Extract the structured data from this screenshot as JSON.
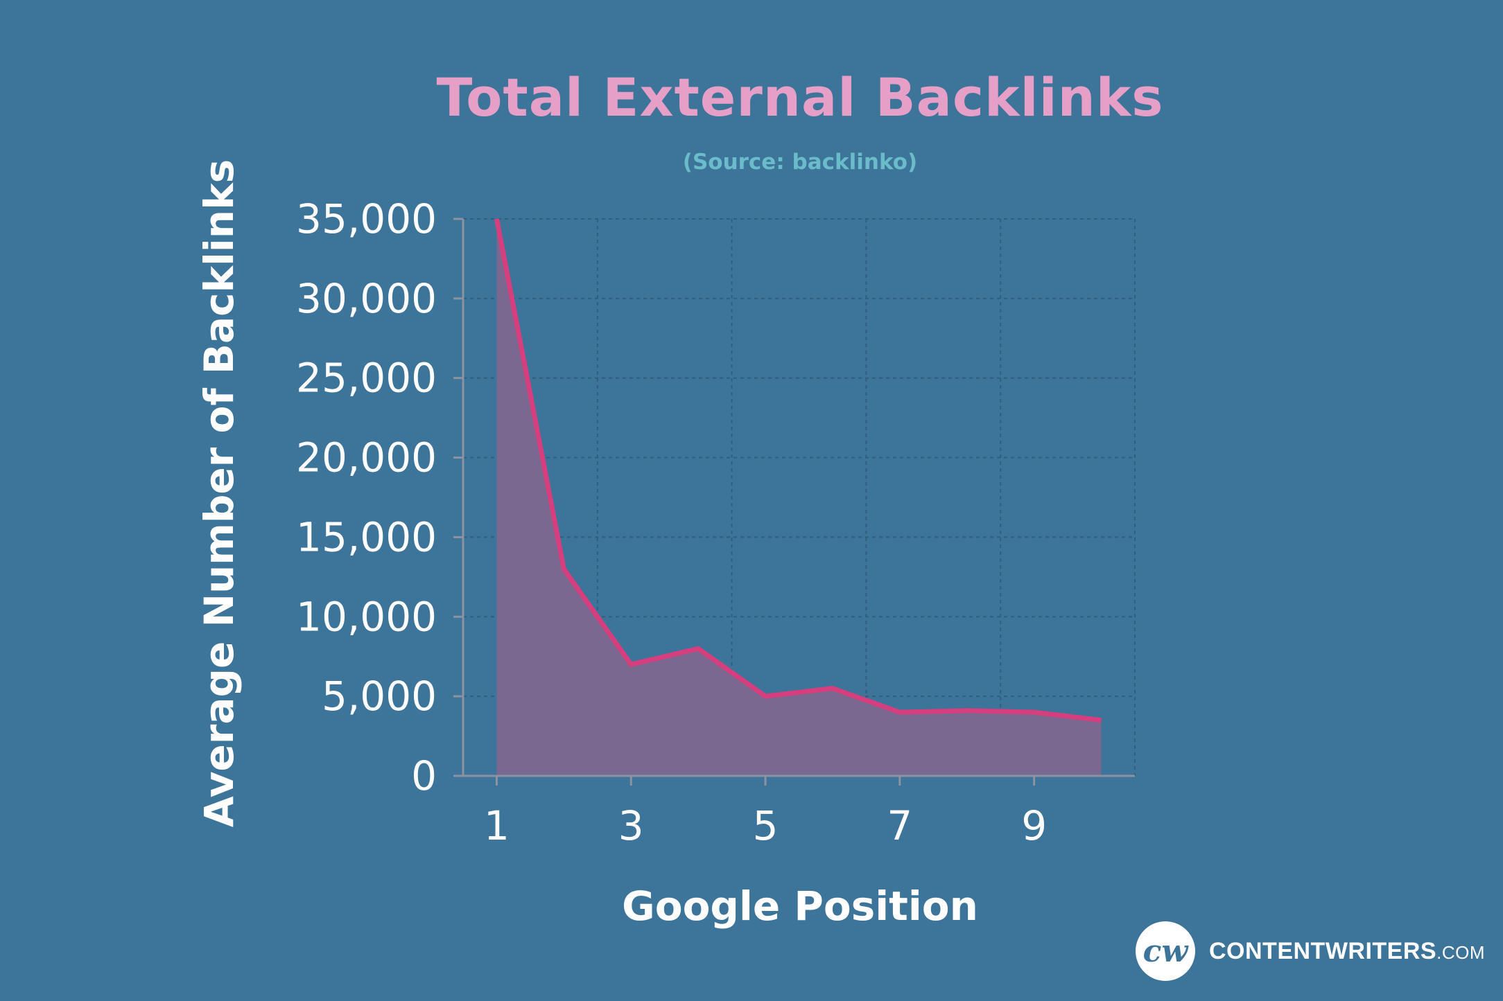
{
  "chart_data": {
    "type": "area",
    "title": "Total External Backlinks",
    "subtitle": "(Source: backlinko)",
    "xlabel": "Google Position",
    "ylabel": "Average Number of Backlinks",
    "x": [
      1,
      2,
      3,
      4,
      5,
      6,
      7,
      8,
      9,
      10
    ],
    "series": [
      {
        "values": [
          35000,
          13000,
          7000,
          8000,
          5000,
          5500,
          4000,
          4100,
          4000,
          3500
        ]
      }
    ],
    "xlim": [
      0.5,
      10.5
    ],
    "ylim": [
      0,
      35000
    ],
    "x_ticks": [
      1,
      3,
      5,
      7,
      9
    ],
    "x_tick_labels": [
      "1",
      "3",
      "5",
      "7",
      "9"
    ],
    "y_ticks": [
      0,
      5000,
      10000,
      15000,
      20000,
      25000,
      30000,
      35000
    ],
    "y_tick_labels": [
      "0",
      "5,000",
      "10,000",
      "15,000",
      "20,000",
      "25,000",
      "30,000",
      "35,000"
    ],
    "grid": true,
    "legend": false,
    "colors": {
      "line": "#d63e7e",
      "fill": "#7b6890",
      "grid": "#2e5f80",
      "axis": "#8b93a1"
    }
  },
  "logo": {
    "mark": "cw",
    "name": "CONTENTWRITERS",
    "suffix": ".COM"
  }
}
